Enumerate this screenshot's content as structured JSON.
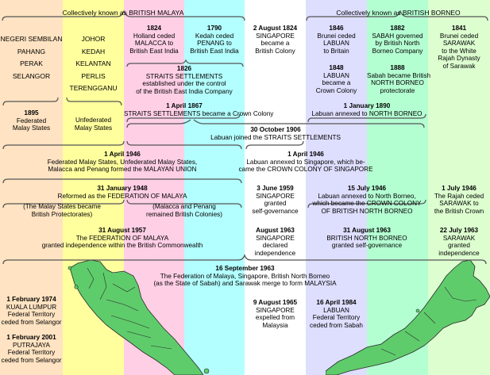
{
  "colors": {
    "orange": "#ffe3c2",
    "yellow": "#ffff9e",
    "pink": "#ffcfe6",
    "cyan": "#b3ffff",
    "white": "#ffffff",
    "lavender": "#dedeff",
    "green": "#b4ffd2",
    "lightgreen": "#ddffd0",
    "map_fill": "#5fcc6c",
    "bracket": "#555555"
  },
  "headers": {
    "malaya": "Collectively known as BRITISH MALAYA",
    "borneo": "Collectively known as BRITISH BORNEO"
  },
  "states": {
    "federated": [
      "NEGERI SEMBILAN",
      "PAHANG",
      "PERAK",
      "SELANGOR"
    ],
    "unfederated": [
      "JOHOR",
      "KEDAH",
      "KELANTAN",
      "PERLIS",
      "TERENGGANU"
    ]
  },
  "events": {
    "e1824": [
      "1824",
      "Holland ceded",
      "MALACCA to",
      "British East India"
    ],
    "e1790": [
      "1790",
      "Kedah ceded",
      "PENANG to",
      "British East India"
    ],
    "e1824b": [
      "2 August 1824",
      "SINGAPORE",
      "became a",
      "British Colony"
    ],
    "e1846": [
      "1846",
      "Brunei ceded",
      "LABUAN",
      "to Britain"
    ],
    "e1882": [
      "1882",
      "SABAH governed",
      "by British North",
      "Borneo Company"
    ],
    "e1841": [
      "1841",
      "Brunei ceded",
      "SARAWAK",
      "to the White",
      "Rajah Dynasty",
      "of Sarawak"
    ],
    "e1826": [
      "1826",
      "STRAITS SETTLEMENTS",
      "established under the control",
      "of the British East India Company"
    ],
    "e1848": [
      "1848",
      "LABUAN",
      "became a",
      "Crown Colony"
    ],
    "e1888": [
      "1888",
      "Sabah became British",
      "NORTH BORNEO",
      "protectorate"
    ],
    "e1895": [
      "1895",
      "Federated",
      "Malay States"
    ],
    "eunfed": [
      "Unfederated",
      "Malay States"
    ],
    "e1867": [
      "1 April 1867",
      "STRAITS SETTLEMENTS became a Crown Colony"
    ],
    "e1890": [
      "1 January 1890",
      "Labuan annexed to NORTH BORNEO"
    ],
    "e1906": [
      "30 October 1906",
      "Labuan joined the STRAITS SETTLEMENTS"
    ],
    "e1946a": [
      "1 April 1946",
      "Federated Malay States, Unfederated Malay States,",
      "Malacca and Penang formed the MALAYAN UNION"
    ],
    "e1946b": [
      "1 April 1946",
      "Labuan annexed to Singapore, which be-",
      "came the CROWN COLONY OF SINGAPORE"
    ],
    "e1948": [
      "31 January 1948",
      "Reformed as the FEDERATION OF MALAYA"
    ],
    "e1948l": [
      "(The Malay States became",
      "British Protectorates)"
    ],
    "e1948r": [
      "(Malacca and Penang",
      "remained British Colonies)"
    ],
    "e1959": [
      "3 June 1959",
      "SINGAPORE",
      "granted",
      "self-governance"
    ],
    "e1946c": [
      "15 July 1946",
      "Labuan annexed to North Borneo,",
      "which became the CROWN COLONY",
      "OF BRITISH NORTH BORNEO"
    ],
    "e1946d": [
      "1 July 1946",
      "The Rajah ceded",
      "SARAWAK to",
      "the British Crown"
    ],
    "e1957": [
      "31 August 1957",
      "The FEDERATION OF MALAYA",
      "granted independence within the British Commonwealth"
    ],
    "e1963a": [
      "August 1963",
      "SINGAPORE",
      "declared",
      "independence"
    ],
    "e1963b": [
      "31 August 1963",
      "BRITISH NORTH BORNEO",
      "granted self-governance"
    ],
    "e1963c": [
      "22 July 1963",
      "SARAWAK",
      "granted",
      "independence"
    ],
    "e1963d": [
      "16 September 1963",
      "The Federation of Malaya, Singapore, British North Borneo",
      "(as the State of Sabah) and Sarawak merge to form MALAYSIA"
    ],
    "e1974": [
      "1 February 1974",
      "KUALA LUMPUR",
      "Federal Territory",
      "ceded from Selangor"
    ],
    "e2001": [
      "1 February 2001",
      "PUTRAJAYA",
      "Federal Territory",
      "ceded from Selangor"
    ],
    "e1965": [
      "9 August 1965",
      "SINGAPORE",
      "expelled from",
      "Malaysia"
    ],
    "e1984": [
      "16 April 1984",
      "LABUAN",
      "Federal Territory",
      "ceded from Sabah"
    ]
  }
}
